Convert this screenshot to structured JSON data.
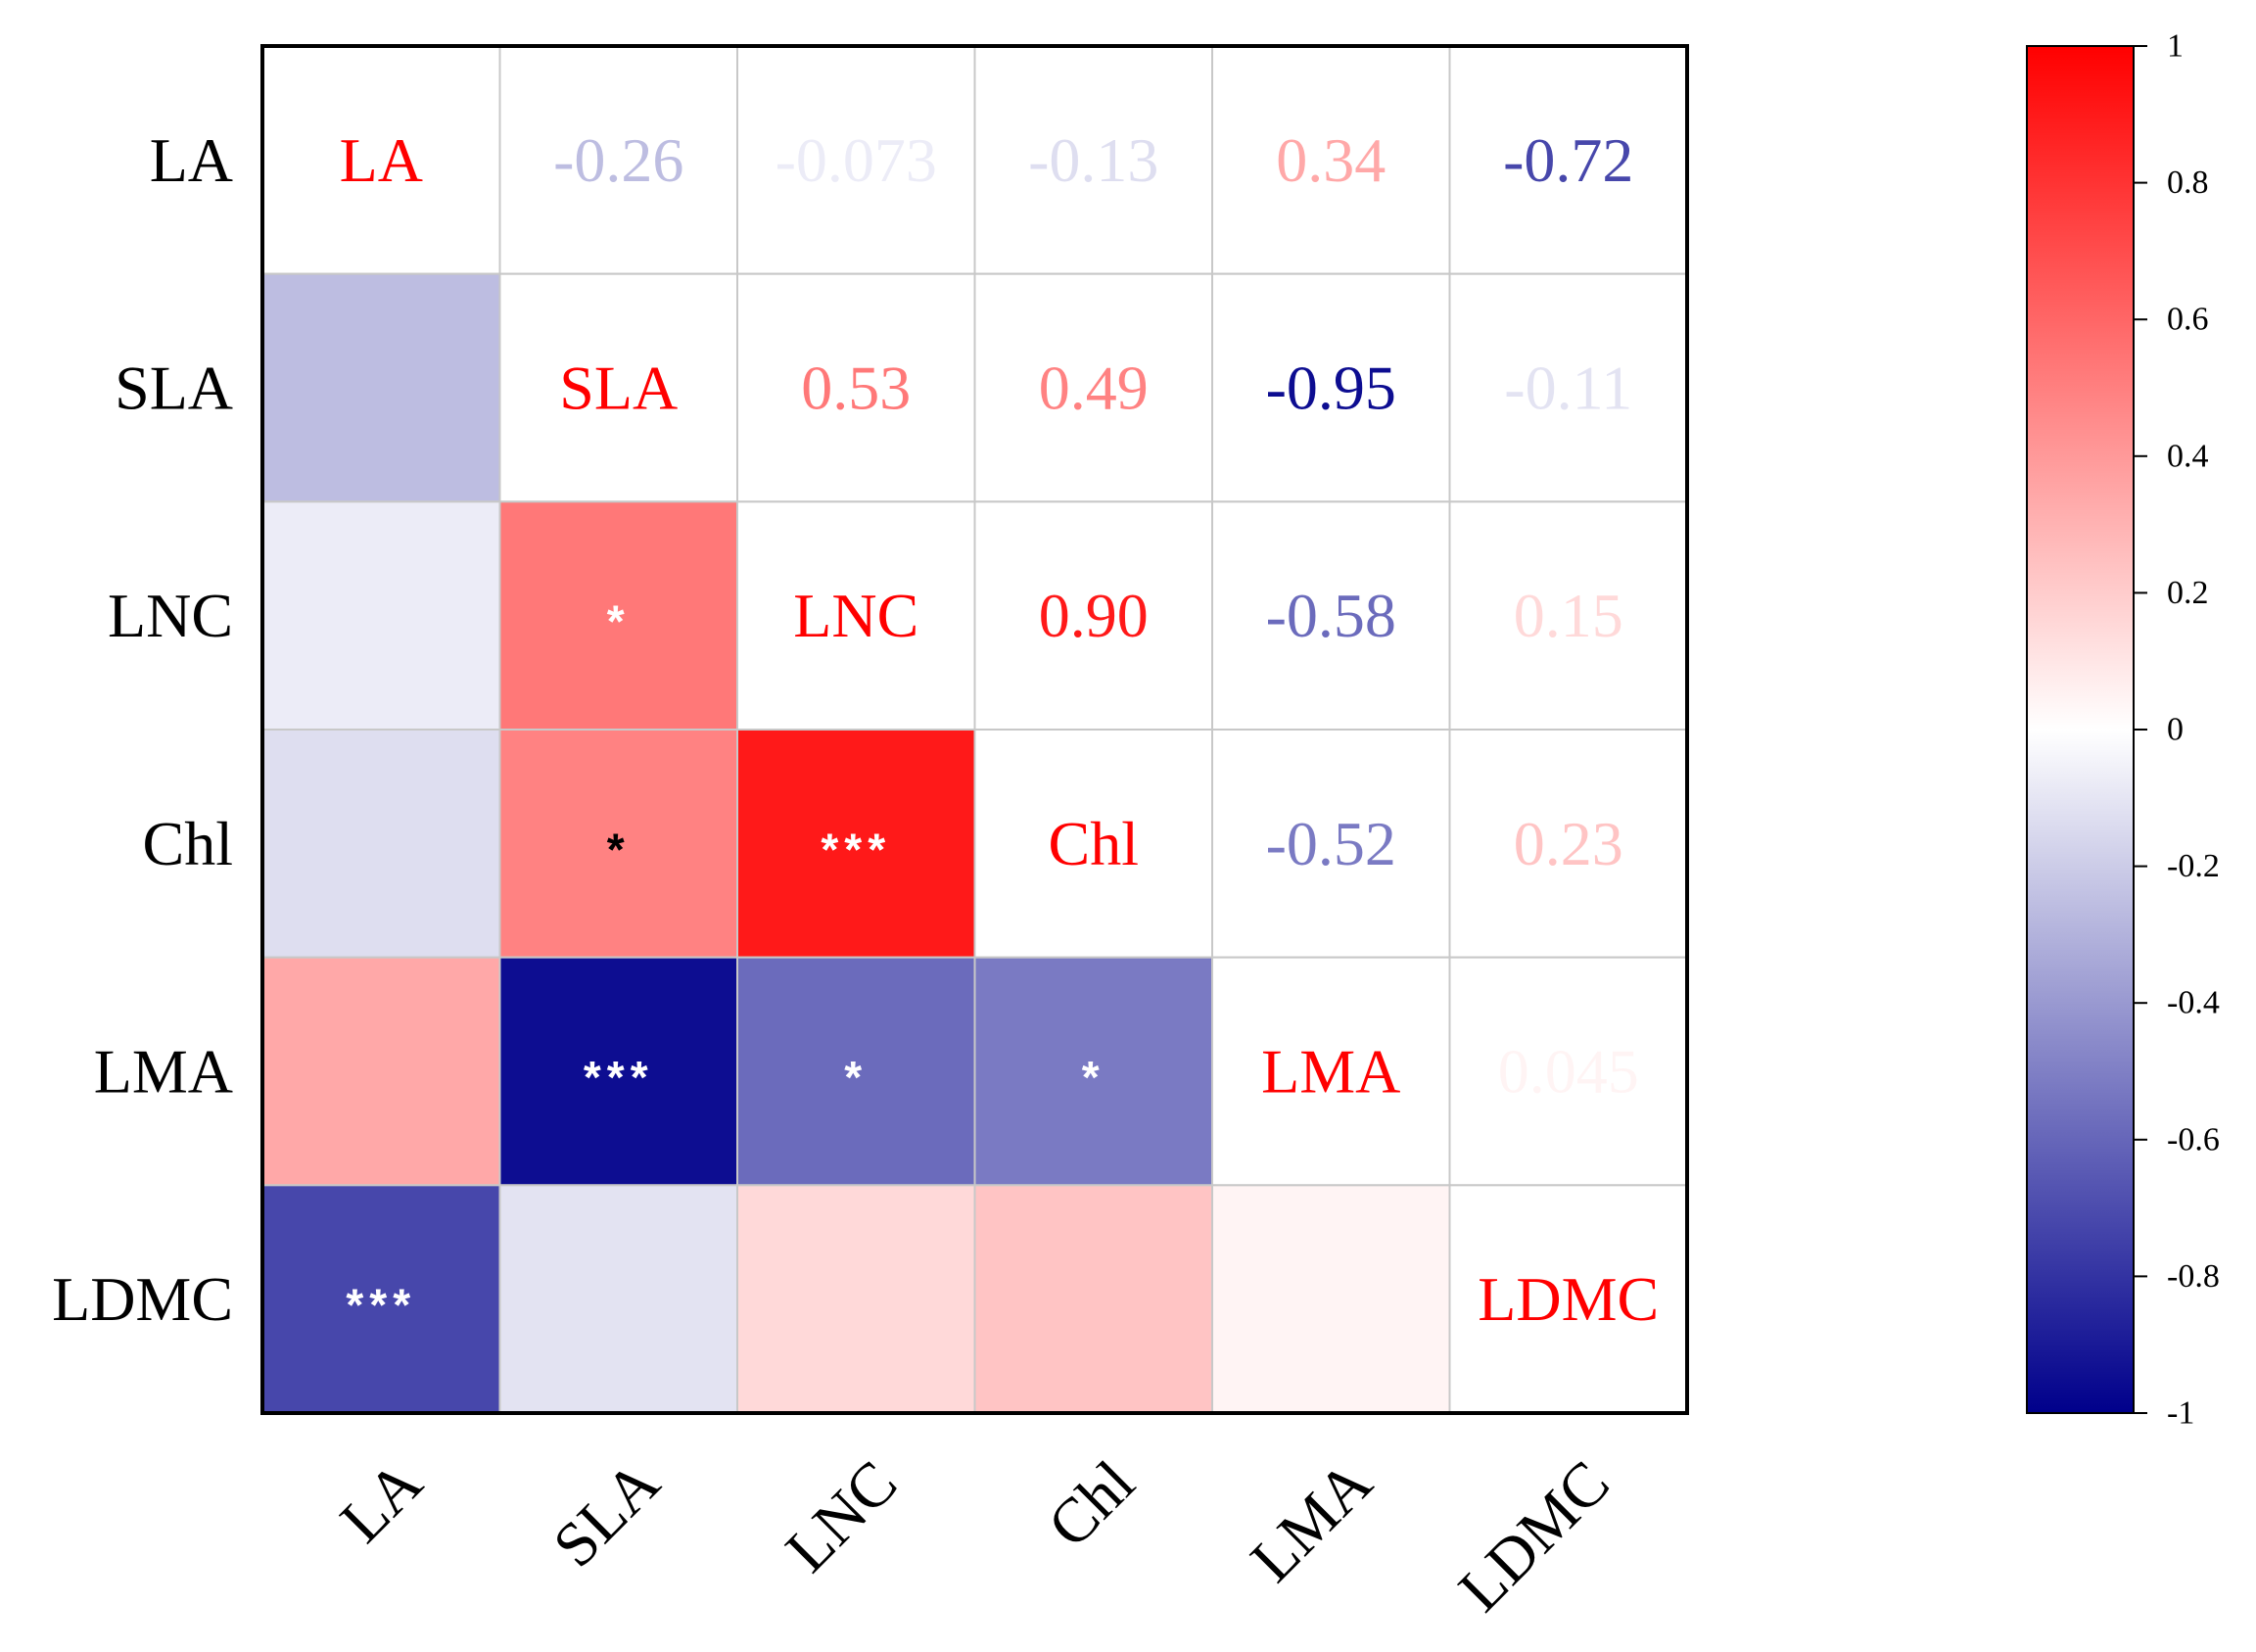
{
  "chart_data": {
    "type": "heatmap",
    "variables": [
      "LA",
      "SLA",
      "LNC",
      "Chl",
      "LMA",
      "LDMC"
    ],
    "matrix": [
      [
        1,
        -0.26,
        -0.073,
        -0.13,
        0.34,
        -0.72
      ],
      [
        -0.26,
        1,
        0.53,
        0.49,
        -0.95,
        -0.11
      ],
      [
        -0.073,
        0.53,
        1,
        0.9,
        -0.58,
        0.15
      ],
      [
        -0.13,
        0.49,
        0.9,
        1,
        -0.52,
        0.23
      ],
      [
        0.34,
        -0.95,
        -0.58,
        -0.52,
        1,
        0.045
      ],
      [
        -0.72,
        -0.11,
        0.15,
        0.23,
        0.045,
        1
      ]
    ],
    "upper_labels": [
      [
        "",
        "-0.26",
        "-0.073",
        "-0.13",
        "0.34",
        "-0.72"
      ],
      [
        "",
        "",
        "0.53",
        "0.49",
        "-0.95",
        "-0.11"
      ],
      [
        "",
        "",
        "",
        "0.90",
        "-0.58",
        "0.15"
      ],
      [
        "",
        "",
        "",
        "",
        "-0.52",
        "0.23"
      ],
      [
        "",
        "",
        "",
        "",
        "",
        "0.045"
      ],
      [
        "",
        "",
        "",
        "",
        "",
        ""
      ]
    ],
    "significance": [
      [
        "",
        "",
        "",
        "",
        "",
        ""
      ],
      [
        "",
        "",
        "",
        "",
        "",
        ""
      ],
      [
        "",
        "*",
        "",
        "",
        "",
        ""
      ],
      [
        "",
        "*",
        "***",
        "",
        "",
        ""
      ],
      [
        "",
        "***",
        "*",
        "*",
        "",
        ""
      ],
      [
        "***",
        "",
        "",
        "",
        "",
        ""
      ]
    ],
    "colorbar": {
      "range": [
        -1,
        1
      ],
      "ticks": [
        "1",
        "0.8",
        "0.6",
        "0.4",
        "0.2",
        "0",
        "-0.2",
        "-0.4",
        "-0.6",
        "-0.8",
        "-1"
      ],
      "colors": {
        "high": "#ff0000",
        "mid": "#ffffff",
        "low": "#00008b"
      }
    },
    "diagonal_color": "#ff0000"
  }
}
